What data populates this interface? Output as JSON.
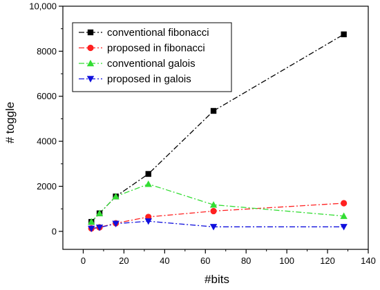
{
  "chart_data": {
    "type": "line",
    "xlabel": "#bits",
    "ylabel": "# toggle",
    "xlim": [
      -10,
      140
    ],
    "ylim": [
      -800,
      10000
    ],
    "x_ticks": [
      0,
      20,
      40,
      60,
      80,
      100,
      120,
      140
    ],
    "y_ticks": [
      0,
      2000,
      4000,
      6000,
      8000,
      10000
    ],
    "y_tick_labels": [
      "0",
      "2000",
      "4000",
      "6000",
      "8000",
      "10,000"
    ],
    "legend_position": "top-left",
    "grid": false,
    "series": [
      {
        "name": "conventional fibonacci",
        "color": "#000000",
        "marker": "square",
        "dash": "dashdot",
        "x": [
          4,
          8,
          16,
          32,
          64,
          128
        ],
        "y": [
          420,
          800,
          1550,
          2550,
          5350,
          8750
        ]
      },
      {
        "name": "proposed in fibonacci",
        "color": "#ff2020",
        "marker": "circle",
        "dash": "dashdot",
        "x": [
          4,
          8,
          16,
          32,
          64,
          128
        ],
        "y": [
          130,
          180,
          360,
          640,
          900,
          1250
        ]
      },
      {
        "name": "conventional galois",
        "color": "#33dd33",
        "marker": "triangle-up",
        "dash": "dashdot",
        "x": [
          4,
          8,
          16,
          32,
          64,
          128
        ],
        "y": [
          430,
          800,
          1550,
          2100,
          1180,
          680
        ]
      },
      {
        "name": "proposed in galois",
        "color": "#1010dd",
        "marker": "triangle-down",
        "dash": "dashdot",
        "x": [
          4,
          8,
          16,
          32,
          64,
          128
        ],
        "y": [
          120,
          170,
          340,
          450,
          200,
          200
        ]
      }
    ]
  }
}
